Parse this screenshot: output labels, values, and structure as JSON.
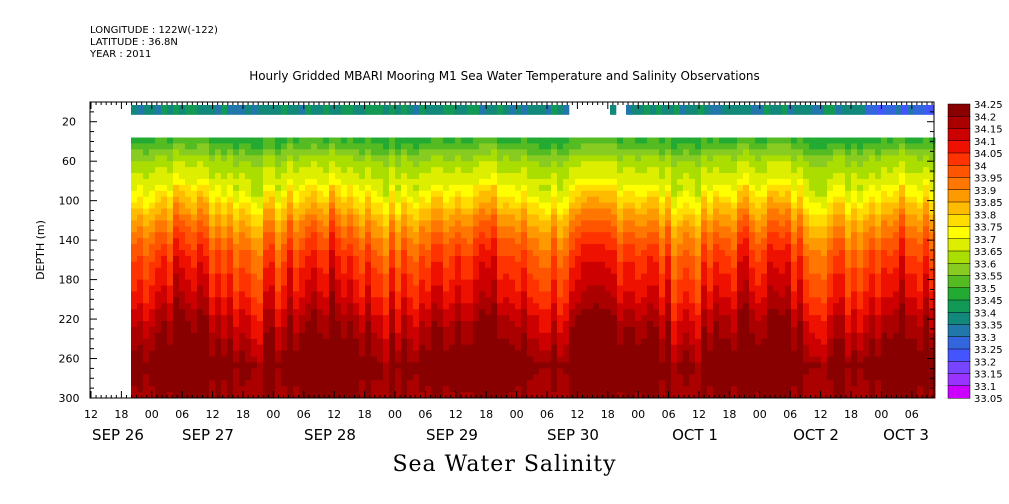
{
  "header": {
    "longitude": "LONGITUDE : 122W(-122)",
    "latitude": "LATITUDE : 36.8N",
    "year": "YEAR : 2011"
  },
  "title": "Hourly Gridded MBARI Mooring M1 Sea Water Temperature and Salinity Observations",
  "footer": "Sea Water Salinity",
  "colors": {
    "scale": [
      "#cc00ff",
      "#9933ff",
      "#7744ff",
      "#4455ff",
      "#3366dd",
      "#2277aa",
      "#11887a",
      "#119955",
      "#22aa33",
      "#55bb22",
      "#88cc22",
      "#aadd00",
      "#ddee00",
      "#ffff00",
      "#ffdd00",
      "#ffbb00",
      "#ff9900",
      "#ff7700",
      "#ff5500",
      "#ff3300",
      "#ee1100",
      "#cc0000",
      "#aa0000",
      "#880000"
    ]
  },
  "chart_data": {
    "type": "heatmap",
    "title": "Hourly Gridded MBARI Mooring M1 Sea Water Temperature and Salinity Observations",
    "xlabel": "",
    "ylabel": "DEPTH (m)",
    "ylim": [
      300,
      0
    ],
    "yticks": [
      20,
      60,
      100,
      140,
      180,
      220,
      260,
      300
    ],
    "x_start": "SEP 26 12:00",
    "x_end": "OCT 3 10:00",
    "x_hour_ticks": [
      "12",
      "18",
      "00",
      "06",
      "12",
      "18",
      "00",
      "06",
      "12",
      "18",
      "00",
      "06",
      "12",
      "18",
      "00",
      "06",
      "12",
      "18",
      "00",
      "06",
      "12",
      "18",
      "00",
      "06",
      "12",
      "18",
      "00",
      "06"
    ],
    "x_day_labels": [
      "SEP 26",
      "SEP 27",
      "SEP 28",
      "SEP 29",
      "SEP 30",
      "OCT  1",
      "OCT  2",
      "OCT  3"
    ],
    "colorbar_labels": [
      "34.25",
      "34.2",
      "34.15",
      "34.1",
      "34.05",
      "34",
      "33.95",
      "33.9",
      "33.85",
      "33.8",
      "33.75",
      "33.7",
      "33.65",
      "33.6",
      "33.55",
      "33.5",
      "33.45",
      "33.4",
      "33.35",
      "33.3",
      "33.25",
      "33.2",
      "33.15",
      "33.1",
      "33.05"
    ],
    "depth_profile": [
      {
        "depth": 10,
        "salinity": 33.42
      },
      {
        "depth": 40,
        "salinity": 33.5
      },
      {
        "depth": 60,
        "salinity": 33.62
      },
      {
        "depth": 80,
        "salinity": 33.68
      },
      {
        "depth": 100,
        "salinity": 33.78
      },
      {
        "depth": 120,
        "salinity": 33.88
      },
      {
        "depth": 140,
        "salinity": 33.96
      },
      {
        "depth": 160,
        "salinity": 34.02
      },
      {
        "depth": 180,
        "salinity": 34.06
      },
      {
        "depth": 200,
        "salinity": 34.1
      },
      {
        "depth": 220,
        "salinity": 34.16
      },
      {
        "depth": 240,
        "salinity": 34.2
      },
      {
        "depth": 260,
        "salinity": 34.25
      },
      {
        "depth": 280,
        "salinity": 34.22
      },
      {
        "depth": 300,
        "salinity": 34.2
      }
    ]
  }
}
